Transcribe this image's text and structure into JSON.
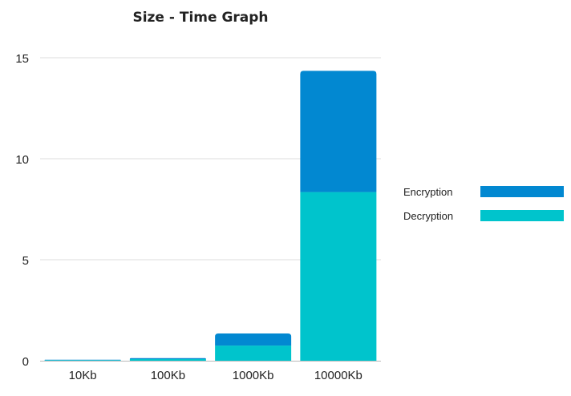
{
  "chart_data": {
    "type": "bar",
    "stacked": true,
    "title": "Size - Time Graph",
    "xlabel": "",
    "ylabel": "",
    "categories": [
      "10Kb",
      "100Kb",
      "1000Kb",
      "10000Kb"
    ],
    "series": [
      {
        "name": "Decryption",
        "values": [
          0.03,
          0.08,
          0.75,
          8.35
        ],
        "color": "#00C4CC"
      },
      {
        "name": "Encryption",
        "values": [
          0.02,
          0.05,
          0.6,
          6.0
        ],
        "color": "#0288D1"
      }
    ],
    "ylim": [
      0,
      15
    ],
    "yticks": [
      0,
      5,
      10,
      15
    ],
    "grid": true,
    "legend_position": "right"
  }
}
